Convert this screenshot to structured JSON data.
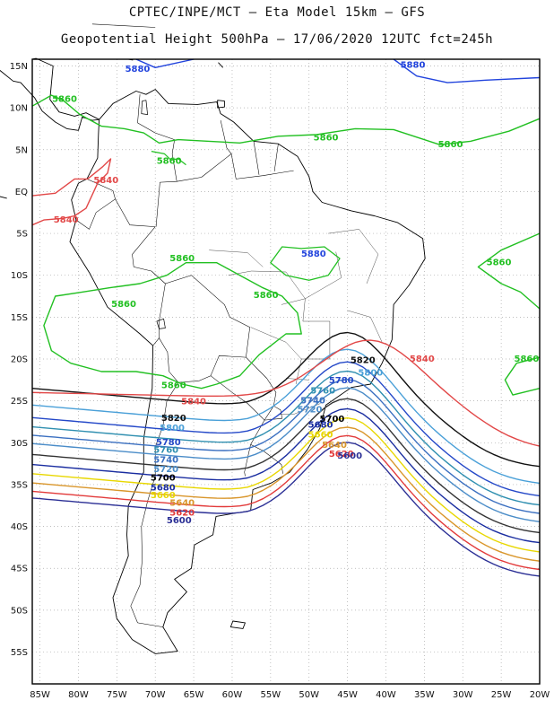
{
  "header": {
    "line1": "CPTEC/INPE/MCT –  Eta Model 15km – GFS",
    "line2": "Geopotential Height 500hPa – 17/06/2020 12UTC fct=245h"
  },
  "map": {
    "lon_range": [
      -86,
      -20
    ],
    "lat_range": [
      -58.8,
      15.8
    ],
    "lon_ticks": [
      "85W",
      "80W",
      "75W",
      "70W",
      "65W",
      "60W",
      "55W",
      "50W",
      "45W",
      "40W",
      "35W",
      "30W",
      "25W",
      "20W"
    ],
    "lat_ticks": [
      "15N",
      "10N",
      "5N",
      "EQ",
      "5S",
      "10S",
      "15S",
      "20S",
      "25S",
      "30S",
      "35S",
      "40S",
      "45S",
      "50S",
      "55S"
    ],
    "colors": {
      "5500": "#1a1f7a",
      "5600": "#2b2f95",
      "5620": "#e23a3a",
      "5640": "#d9962b",
      "5660": "#e8d700",
      "5680": "#1a2da0",
      "5720": "#4a8cc8",
      "5740": "#3a6fc0",
      "5760": "#2f8fb0",
      "5780": "#2448c8",
      "5800": "#4aa0d8",
      "5820": "#111111",
      "5840": "#e24848",
      "5860": "#22c022",
      "5880": "#2244dd",
      "coast": "#000000",
      "grid": "#aaaaaa"
    },
    "contour_labels": [
      {
        "text": "5880",
        "value": 5880,
        "lon": -72.3,
        "lat": 14.3
      },
      {
        "text": "5880",
        "value": 5880,
        "lon": -36.5,
        "lat": 14.8
      },
      {
        "text": "5860",
        "value": 5860,
        "lon": -81.8,
        "lat": 10.7
      },
      {
        "text": "5860",
        "value": 5860,
        "lon": -47.8,
        "lat": 6.1
      },
      {
        "text": "5860",
        "value": 5860,
        "lon": -31.6,
        "lat": 5.3
      },
      {
        "text": "5860",
        "value": 5860,
        "lon": -68.2,
        "lat": 3.3
      },
      {
        "text": "5840",
        "value": 5840,
        "lon": -76.4,
        "lat": 1.0
      },
      {
        "text": "5840",
        "value": 5840,
        "lon": -81.6,
        "lat": -3.7
      },
      {
        "text": "5860",
        "value": 5860,
        "lon": -66.5,
        "lat": -8.3
      },
      {
        "text": "5880",
        "value": 5880,
        "lon": -49.4,
        "lat": -7.8
      },
      {
        "text": "5860",
        "value": 5860,
        "lon": -25.3,
        "lat": -8.8
      },
      {
        "text": "5860",
        "value": 5860,
        "lon": -74.1,
        "lat": -13.8
      },
      {
        "text": "5860",
        "value": 5860,
        "lon": -55.6,
        "lat": -12.7
      },
      {
        "text": "5820",
        "value": 5820,
        "lon": -43.0,
        "lat": -20.5
      },
      {
        "text": "5840",
        "value": 5840,
        "lon": -35.3,
        "lat": -20.3
      },
      {
        "text": "5860",
        "value": 5860,
        "lon": -21.7,
        "lat": -20.3
      },
      {
        "text": "5800",
        "value": 5800,
        "lon": -42.0,
        "lat": -22.0
      },
      {
        "text": "5780",
        "value": 5780,
        "lon": -45.8,
        "lat": -22.9
      },
      {
        "text": "5860",
        "value": 5860,
        "lon": -67.6,
        "lat": -23.5
      },
      {
        "text": "5760",
        "value": 5760,
        "lon": -48.2,
        "lat": -24.1
      },
      {
        "text": "5840",
        "value": 5840,
        "lon": -65.0,
        "lat": -25.4
      },
      {
        "text": "5740",
        "value": 5740,
        "lon": -49.5,
        "lat": -25.3
      },
      {
        "text": "5720",
        "value": 5720,
        "lon": -49.9,
        "lat": -26.4
      },
      {
        "text": "5700",
        "value": 5700,
        "lon": -47.0,
        "lat": -27.5
      },
      {
        "text": "5820",
        "value": 5820,
        "lon": -67.6,
        "lat": -27.4
      },
      {
        "text": "5680",
        "value": 5680,
        "lon": -48.5,
        "lat": -28.2
      },
      {
        "text": "5800",
        "value": 5800,
        "lon": -67.8,
        "lat": -28.6
      },
      {
        "text": "5660",
        "value": 5660,
        "lon": -48.5,
        "lat": -29.4
      },
      {
        "text": "5780",
        "value": 5780,
        "lon": -68.3,
        "lat": -30.3
      },
      {
        "text": "5640",
        "value": 5640,
        "lon": -46.7,
        "lat": -30.6
      },
      {
        "text": "5760",
        "value": 5760,
        "lon": -68.6,
        "lat": -31.2
      },
      {
        "text": "5620",
        "value": 5620,
        "lon": -45.8,
        "lat": -31.7
      },
      {
        "text": "5740",
        "value": 5740,
        "lon": -68.6,
        "lat": -32.4
      },
      {
        "text": "5600",
        "value": 5600,
        "lon": -44.7,
        "lat": -31.9
      },
      {
        "text": "5720",
        "value": 5720,
        "lon": -68.6,
        "lat": -33.5
      },
      {
        "text": "5700",
        "value": 5700,
        "lon": -69.0,
        "lat": -34.5
      },
      {
        "text": "5680",
        "value": 5680,
        "lon": -69.0,
        "lat": -35.7
      },
      {
        "text": "5660",
        "value": 5660,
        "lon": -69.0,
        "lat": -36.6
      },
      {
        "text": "5640",
        "value": 5640,
        "lon": -66.5,
        "lat": -37.5
      },
      {
        "text": "5620",
        "value": 5620,
        "lon": -66.5,
        "lat": -38.7
      },
      {
        "text": "5600",
        "value": 5600,
        "lon": -66.9,
        "lat": -39.6
      }
    ]
  }
}
